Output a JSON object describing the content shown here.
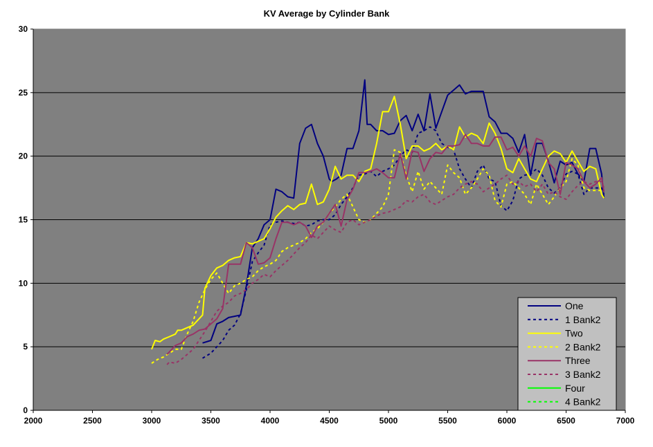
{
  "chart_data": {
    "type": "line",
    "title": "KV Average by Cylinder Bank",
    "xlabel": "",
    "ylabel": "",
    "xlim": [
      2000,
      7000
    ],
    "ylim": [
      0,
      30
    ],
    "xticks": [
      2000,
      2500,
      3000,
      3500,
      4000,
      4500,
      5000,
      5500,
      6000,
      6500,
      7000
    ],
    "yticks": [
      0,
      5,
      10,
      15,
      20,
      25,
      30
    ],
    "grid": "horizontal",
    "legend_position": "bottom-right",
    "plot_background": "#808080",
    "series": [
      {
        "name": "One",
        "color": "#000080",
        "dash": "solid",
        "x": [
          3430,
          3500,
          3550,
          3600,
          3650,
          3700,
          3750,
          3800,
          3850,
          3900,
          3950,
          4000,
          4050,
          4100,
          4150,
          4200,
          4250,
          4300,
          4350,
          4400,
          4450,
          4500,
          4520,
          4560,
          4600,
          4650,
          4700,
          4750,
          4800,
          4820,
          4850,
          4900,
          4950,
          5000,
          5050,
          5100,
          5150,
          5200,
          5250,
          5300,
          5350,
          5400,
          5450,
          5500,
          5550,
          5600,
          5650,
          5700,
          5750,
          5800,
          5850,
          5900,
          5950,
          6000,
          6050,
          6100,
          6150,
          6200,
          6250,
          6300,
          6350,
          6400,
          6450,
          6500,
          6550,
          6600,
          6650,
          6700,
          6750,
          6800,
          6820
        ],
        "y": [
          5.3,
          5.5,
          6.8,
          7.0,
          7.3,
          7.4,
          7.5,
          9.8,
          12.8,
          13.5,
          14.6,
          15.0,
          17.4,
          17.2,
          16.8,
          16.7,
          21.0,
          22.2,
          22.5,
          21.0,
          20.0,
          18.2,
          18.0,
          18.2,
          18.5,
          20.6,
          20.6,
          22.0,
          26.0,
          22.5,
          22.5,
          22.0,
          22.0,
          21.7,
          21.8,
          22.8,
          23.2,
          22.0,
          23.3,
          22.0,
          24.9,
          22.2,
          23.5,
          24.8,
          25.2,
          25.6,
          24.9,
          25.1,
          25.1,
          25.1,
          23.1,
          22.7,
          21.8,
          21.8,
          21.4,
          20.3,
          21.7,
          18.5,
          21.0,
          21.0,
          19.6,
          17.9,
          19.6,
          19.3,
          19.5,
          18.6,
          18.0,
          20.6,
          20.6,
          18.6,
          16.7
        ]
      },
      {
        "name": "1 Bank2",
        "color": "#000080",
        "dash": "dotted",
        "x": [
          3430,
          3500,
          3550,
          3600,
          3650,
          3700,
          3750,
          3800,
          3850,
          3900,
          3950,
          4000,
          4050,
          4100,
          4150,
          4200,
          4250,
          4300,
          4350,
          4400,
          4450,
          4500,
          4550,
          4600,
          4650,
          4700,
          4750,
          4800,
          4850,
          4900,
          4950,
          5000,
          5050,
          5100,
          5150,
          5200,
          5250,
          5300,
          5350,
          5400,
          5450,
          5500,
          5550,
          5600,
          5650,
          5700,
          5750,
          5800,
          5850,
          5900,
          5950,
          6000,
          6050,
          6100,
          6150,
          6200,
          6250,
          6300,
          6350,
          6400,
          6450,
          6500,
          6550,
          6600,
          6650,
          6700,
          6750,
          6800,
          6820
        ],
        "y": [
          4.1,
          4.5,
          5.0,
          5.5,
          6.3,
          6.7,
          7.6,
          9.5,
          11.7,
          12.4,
          13.0,
          14.6,
          14.8,
          14.9,
          14.8,
          14.7,
          14.8,
          14.5,
          14.6,
          14.9,
          15.0,
          15.0,
          15.4,
          16.2,
          16.8,
          17.5,
          18.5,
          18.6,
          18.8,
          18.4,
          18.8,
          19.0,
          19.3,
          20.0,
          20.5,
          20.3,
          21.8,
          22.0,
          22.3,
          22.0,
          21.0,
          20.7,
          20.5,
          19.0,
          18.2,
          17.5,
          18.8,
          19.3,
          18.2,
          18.0,
          16.1,
          15.7,
          16.5,
          18.2,
          18.5,
          18.6,
          19.0,
          18.5,
          17.5,
          17.1,
          17.5,
          18.6,
          18.8,
          18.6,
          17.0,
          17.5,
          17.5,
          17.5,
          17.0
        ]
      },
      {
        "name": "Two",
        "color": "#ffff00",
        "dash": "solid",
        "x": [
          3000,
          3030,
          3070,
          3100,
          3150,
          3200,
          3220,
          3250,
          3300,
          3350,
          3400,
          3430,
          3450,
          3500,
          3550,
          3600,
          3650,
          3700,
          3750,
          3800,
          3850,
          3900,
          3950,
          4000,
          4050,
          4100,
          4150,
          4200,
          4250,
          4300,
          4350,
          4400,
          4450,
          4500,
          4550,
          4600,
          4650,
          4700,
          4750,
          4800,
          4850,
          4900,
          4950,
          5000,
          5050,
          5100,
          5150,
          5200,
          5250,
          5300,
          5350,
          5400,
          5450,
          5500,
          5550,
          5600,
          5650,
          5700,
          5750,
          5800,
          5850,
          5900,
          5950,
          6000,
          6050,
          6100,
          6150,
          6200,
          6250,
          6300,
          6350,
          6400,
          6450,
          6500,
          6550,
          6600,
          6650,
          6700,
          6750,
          6800,
          6820
        ],
        "y": [
          4.8,
          5.5,
          5.4,
          5.6,
          5.8,
          6.0,
          6.3,
          6.3,
          6.5,
          6.7,
          7.2,
          7.5,
          9.6,
          10.6,
          11.2,
          11.4,
          11.8,
          12.0,
          12.1,
          13.2,
          13.1,
          13.3,
          13.5,
          14.3,
          15.2,
          15.7,
          16.1,
          15.8,
          16.2,
          16.3,
          17.8,
          16.2,
          16.4,
          17.4,
          19.2,
          18.2,
          18.5,
          18.5,
          18.0,
          18.8,
          19.0,
          21.0,
          23.5,
          23.5,
          24.7,
          22.5,
          19.8,
          20.8,
          20.8,
          20.4,
          20.6,
          21.0,
          20.5,
          20.8,
          20.5,
          22.3,
          21.5,
          21.8,
          21.6,
          21.0,
          22.6,
          21.8,
          20.6,
          19.0,
          18.7,
          19.8,
          19.0,
          18.2,
          18.0,
          19.0,
          20.0,
          20.4,
          20.2,
          19.5,
          20.4,
          19.6,
          18.8,
          19.2,
          19.0,
          17.0,
          16.7
        ]
      },
      {
        "name": "2 Bank2",
        "color": "#ffff00",
        "dash": "dotted",
        "x": [
          3000,
          3050,
          3100,
          3150,
          3200,
          3250,
          3300,
          3350,
          3400,
          3450,
          3500,
          3550,
          3600,
          3650,
          3700,
          3750,
          3800,
          3850,
          3900,
          3950,
          4000,
          4050,
          4100,
          4150,
          4200,
          4250,
          4300,
          4350,
          4400,
          4450,
          4500,
          4550,
          4600,
          4650,
          4700,
          4750,
          4800,
          4850,
          4900,
          4950,
          5000,
          5050,
          5100,
          5150,
          5200,
          5250,
          5300,
          5350,
          5400,
          5450,
          5500,
          5550,
          5600,
          5650,
          5700,
          5750,
          5800,
          5850,
          5900,
          5950,
          6000,
          6050,
          6100,
          6150,
          6200,
          6250,
          6300,
          6350,
          6400,
          6450,
          6500,
          6550,
          6600,
          6650,
          6700,
          6750,
          6800,
          6820
        ],
        "y": [
          3.7,
          4.0,
          4.2,
          4.5,
          4.8,
          4.8,
          6.0,
          7.0,
          8.5,
          9.5,
          10.3,
          10.8,
          10.0,
          9.2,
          9.8,
          10.0,
          10.3,
          10.5,
          11.0,
          11.3,
          11.5,
          11.8,
          12.5,
          12.8,
          13.0,
          13.2,
          13.5,
          14.0,
          14.3,
          14.8,
          15.5,
          16.0,
          16.6,
          17.0,
          16.0,
          15.0,
          14.8,
          15.0,
          15.5,
          16.0,
          17.0,
          20.5,
          20.3,
          18.5,
          17.2,
          18.8,
          17.4,
          18.0,
          17.5,
          17.0,
          19.3,
          18.7,
          18.3,
          17.0,
          17.5,
          18.2,
          19.0,
          18.5,
          16.5,
          16.0,
          17.8,
          18.0,
          17.5,
          17.0,
          16.2,
          17.8,
          17.0,
          16.2,
          16.8,
          17.5,
          18.0,
          19.8,
          19.3,
          17.5,
          17.3,
          17.3,
          17.3,
          17.2
        ]
      },
      {
        "name": "Three",
        "color": "#993366",
        "dash": "solid",
        "x": [
          3130,
          3150,
          3200,
          3250,
          3300,
          3350,
          3400,
          3450,
          3500,
          3550,
          3600,
          3650,
          3700,
          3750,
          3800,
          3850,
          3900,
          3950,
          4000,
          4050,
          4100,
          4150,
          4200,
          4250,
          4300,
          4350,
          4400,
          4450,
          4500,
          4550,
          4600,
          4650,
          4700,
          4750,
          4800,
          4850,
          4900,
          4950,
          5000,
          5050,
          5100,
          5150,
          5200,
          5250,
          5300,
          5350,
          5400,
          5450,
          5500,
          5550,
          5600,
          5650,
          5700,
          5750,
          5800,
          5850,
          5900,
          5950,
          6000,
          6050,
          6100,
          6150,
          6200,
          6250,
          6300,
          6350,
          6400,
          6450,
          6500,
          6550,
          6600,
          6650,
          6700,
          6750,
          6800,
          6820
        ],
        "y": [
          4.4,
          4.6,
          5.1,
          5.3,
          5.8,
          6.0,
          6.3,
          6.4,
          6.8,
          7.2,
          8.0,
          11.5,
          11.5,
          11.5,
          13.2,
          12.8,
          11.5,
          11.6,
          12.0,
          13.5,
          14.8,
          14.8,
          14.6,
          14.8,
          14.5,
          13.6,
          14.5,
          14.8,
          15.5,
          16.2,
          14.5,
          16.6,
          17.4,
          18.7,
          18.7,
          18.8,
          19.0,
          18.7,
          18.3,
          18.3,
          20.2,
          18.2,
          20.4,
          20.3,
          18.8,
          19.8,
          20.3,
          20.2,
          20.8,
          20.8,
          20.9,
          21.7,
          21.0,
          21.0,
          20.8,
          20.8,
          21.5,
          21.5,
          20.5,
          20.7,
          20.0,
          20.8,
          20.0,
          21.4,
          21.2,
          19.5,
          19.0,
          17.0,
          19.5,
          19.3,
          19.0,
          18.0,
          17.5,
          17.8,
          18.3,
          17.2
        ]
      },
      {
        "name": "3 Bank2",
        "color": "#993366",
        "dash": "dotted",
        "x": [
          3130,
          3150,
          3200,
          3250,
          3300,
          3350,
          3400,
          3450,
          3500,
          3550,
          3600,
          3650,
          3700,
          3750,
          3800,
          3850,
          3900,
          3950,
          4000,
          4050,
          4100,
          4150,
          4200,
          4250,
          4300,
          4350,
          4400,
          4450,
          4500,
          4550,
          4600,
          4650,
          4700,
          4750,
          4800,
          4850,
          4900,
          4950,
          5000,
          5050,
          5100,
          5150,
          5200,
          5250,
          5300,
          5350,
          5400,
          5450,
          5500,
          5550,
          5600,
          5650,
          5700,
          5750,
          5800,
          5850,
          5900,
          5950,
          6000,
          6050,
          6100,
          6150,
          6200,
          6250,
          6300,
          6350,
          6400,
          6450,
          6500,
          6550,
          6600,
          6650,
          6700,
          6750,
          6800,
          6820
        ],
        "y": [
          3.6,
          3.8,
          3.7,
          4.0,
          4.4,
          4.8,
          5.5,
          6.2,
          7.0,
          7.8,
          8.2,
          8.5,
          9.0,
          9.2,
          9.5,
          10.0,
          10.3,
          10.7,
          10.5,
          11.0,
          11.4,
          11.8,
          12.3,
          12.8,
          13.2,
          13.8,
          13.5,
          14.0,
          14.5,
          14.2,
          14.0,
          14.8,
          15.0,
          14.6,
          14.8,
          15.0,
          15.3,
          15.5,
          15.6,
          15.8,
          16.0,
          16.5,
          16.4,
          16.8,
          17.0,
          16.4,
          16.2,
          16.5,
          16.8,
          17.0,
          17.5,
          17.8,
          18.0,
          17.8,
          17.2,
          17.5,
          17.8,
          18.2,
          18.5,
          17.8,
          18.0,
          17.6,
          17.8,
          17.2,
          17.8,
          17.0,
          17.2,
          16.8,
          16.6,
          17.2,
          17.7,
          18.0,
          17.8,
          18.0,
          18.0,
          17.5
        ]
      },
      {
        "name": "Four",
        "color": "#00ff00",
        "dash": "solid",
        "x": [],
        "y": []
      },
      {
        "name": "4 Bank2",
        "color": "#00ff00",
        "dash": "dotted",
        "x": [],
        "y": []
      }
    ]
  }
}
